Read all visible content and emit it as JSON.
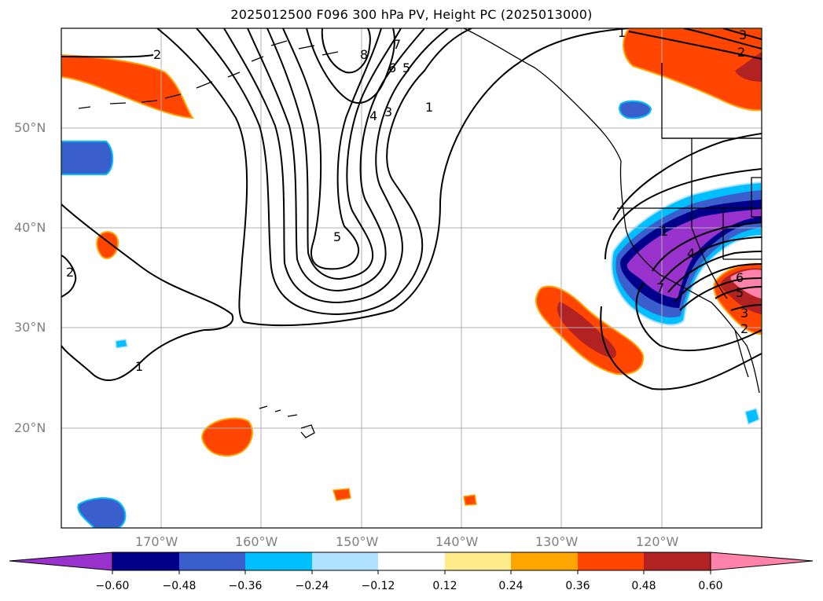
{
  "title": "2025012500 F096 300 hPa PV, Height PC (2025013000)",
  "lat_labels": [
    "50°N",
    "40°N",
    "30°N",
    "20°N"
  ],
  "lon_labels": [
    "170°W",
    "160°W",
    "150°W",
    "140°W",
    "130°W",
    "120°W"
  ],
  "colorbar": {
    "ticks": [
      "−0.60",
      "−0.48",
      "−0.36",
      "−0.24",
      "−0.12",
      "0.12",
      "0.24",
      "0.36",
      "0.48",
      "0.60"
    ],
    "colors": [
      "#9932cc",
      "#00008b",
      "#3a5fcd",
      "#00bfff",
      "#b0e2ff",
      "#ffffff",
      "#ffec8b",
      "#ffa500",
      "#ff4500",
      "#b22222",
      "#ff82ab"
    ]
  },
  "contour_labels": {
    "trough": [
      "2",
      "8",
      "7",
      "6",
      "5",
      "4",
      "3",
      "1",
      "5"
    ],
    "west": [
      "2",
      "1"
    ],
    "east": [
      "1",
      "4",
      "7",
      "6",
      "5",
      "3",
      "2"
    ],
    "northeast": [
      "1",
      "3",
      "2"
    ]
  }
}
